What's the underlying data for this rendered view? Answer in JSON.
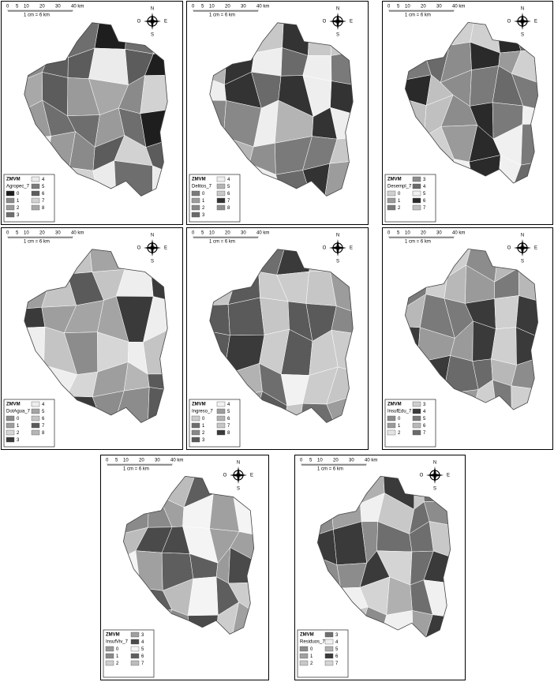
{
  "scale": {
    "labels": [
      "0",
      "5",
      "10",
      "20",
      "30",
      "40 km"
    ],
    "ratio": "1 cm = 6 km"
  },
  "compass": {
    "north": "N",
    "south": "S",
    "west": "O",
    "east": "E"
  },
  "maps": [
    {
      "region": "ZMVM",
      "variable": "Agropec_7",
      "classes": [
        {
          "label": "0",
          "color": "#1e1e1e"
        },
        {
          "label": "1",
          "color": "#8a8a8a"
        },
        {
          "label": "2",
          "color": "#9a9a9a"
        },
        {
          "label": "3",
          "color": "#6e6e6e"
        },
        {
          "label": "4",
          "color": "#ebebeb"
        },
        {
          "label": "5",
          "color": "#7c7c7c"
        },
        {
          "label": "6",
          "color": "#5c5c5c"
        },
        {
          "label": "7",
          "color": "#d2d2d2"
        },
        {
          "label": "8",
          "color": "#a8a8a8"
        }
      ]
    },
    {
      "region": "ZMVM",
      "variable": "Delitos_7",
      "classes": [
        {
          "label": "0",
          "color": "#7a7a7a"
        },
        {
          "label": "1",
          "color": "#9c9c9c"
        },
        {
          "label": "2",
          "color": "#888888"
        },
        {
          "label": "3",
          "color": "#6a6a6a"
        },
        {
          "label": "4",
          "color": "#eeeeee"
        },
        {
          "label": "5",
          "color": "#b4b4b4"
        },
        {
          "label": "6",
          "color": "#c8c8c8"
        },
        {
          "label": "7",
          "color": "#333333"
        },
        {
          "label": "8",
          "color": "#8f8f8f"
        }
      ]
    },
    {
      "region": "ZMVM",
      "variable": "Desempl_7",
      "classes": [
        {
          "label": "0",
          "color": "#d0d0d0"
        },
        {
          "label": "1",
          "color": "#9a9a9a"
        },
        {
          "label": "2",
          "color": "#7a7a7a"
        },
        {
          "label": "3",
          "color": "#8c8c8c"
        },
        {
          "label": "4",
          "color": "#6a6a6a"
        },
        {
          "label": "5",
          "color": "#f0f0f0"
        },
        {
          "label": "6",
          "color": "#2a2a2a"
        },
        {
          "label": "7",
          "color": "#c0c0c0"
        }
      ]
    },
    {
      "region": "ZMVM",
      "variable": "DotAgua_7",
      "classes": [
        {
          "label": "0",
          "color": "#8c8c8c"
        },
        {
          "label": "1",
          "color": "#9e9e9e"
        },
        {
          "label": "2",
          "color": "#d6d6d6"
        },
        {
          "label": "3",
          "color": "#3a3a3a"
        },
        {
          "label": "4",
          "color": "#eeeeee"
        },
        {
          "label": "5",
          "color": "#a4a4a4"
        },
        {
          "label": "6",
          "color": "#c4c4c4"
        },
        {
          "label": "7",
          "color": "#5a5a5a"
        },
        {
          "label": "8",
          "color": "#b6b6b6"
        }
      ]
    },
    {
      "region": "ZMVM",
      "variable": "Ingreso_7",
      "classes": [
        {
          "label": "0",
          "color": "#cccccc"
        },
        {
          "label": "1",
          "color": "#6e6e6e"
        },
        {
          "label": "2",
          "color": "#888888"
        },
        {
          "label": "3",
          "color": "#5a5a5a"
        },
        {
          "label": "4",
          "color": "#f2f2f2"
        },
        {
          "label": "5",
          "color": "#9c9c9c"
        },
        {
          "label": "6",
          "color": "#b2b2b2"
        },
        {
          "label": "7",
          "color": "#c6c6c6"
        },
        {
          "label": "8",
          "color": "#3a3a3a"
        }
      ]
    },
    {
      "region": "ZMVM",
      "variable": "InsufEdu_7",
      "classes": [
        {
          "label": "0",
          "color": "#8c8c8c"
        },
        {
          "label": "1",
          "color": "#9a9a9a"
        },
        {
          "label": "2",
          "color": "#e4e4e4"
        },
        {
          "label": "3",
          "color": "#cfcfcf"
        },
        {
          "label": "4",
          "color": "#3a3a3a"
        },
        {
          "label": "5",
          "color": "#7a7a7a"
        },
        {
          "label": "6",
          "color": "#b8b8b8"
        },
        {
          "label": "7",
          "color": "#6a6a6a"
        }
      ]
    },
    {
      "region": "ZMVM",
      "variable": "InsufViv_7",
      "classes": [
        {
          "label": "0",
          "color": "#9a9a9a"
        },
        {
          "label": "1",
          "color": "#8a8a8a"
        },
        {
          "label": "2",
          "color": "#cdcdcd"
        },
        {
          "label": "3",
          "color": "#a0a0a0"
        },
        {
          "label": "4",
          "color": "#4a4a4a"
        },
        {
          "label": "5",
          "color": "#f4f4f4"
        },
        {
          "label": "6",
          "color": "#5e5e5e"
        },
        {
          "label": "7",
          "color": "#bcbcbc"
        }
      ]
    },
    {
      "region": "ZMVM",
      "variable": "Residuos_7",
      "classes": [
        {
          "label": "0",
          "color": "#8c8c8c"
        },
        {
          "label": "1",
          "color": "#a0a0a0"
        },
        {
          "label": "2",
          "color": "#c8c8c8"
        },
        {
          "label": "3",
          "color": "#6e6e6e"
        },
        {
          "label": "4",
          "color": "#f0f0f0"
        },
        {
          "label": "5",
          "color": "#b0b0b0"
        },
        {
          "label": "6",
          "color": "#3a3a3a"
        },
        {
          "label": "7",
          "color": "#d4d4d4"
        }
      ]
    }
  ]
}
